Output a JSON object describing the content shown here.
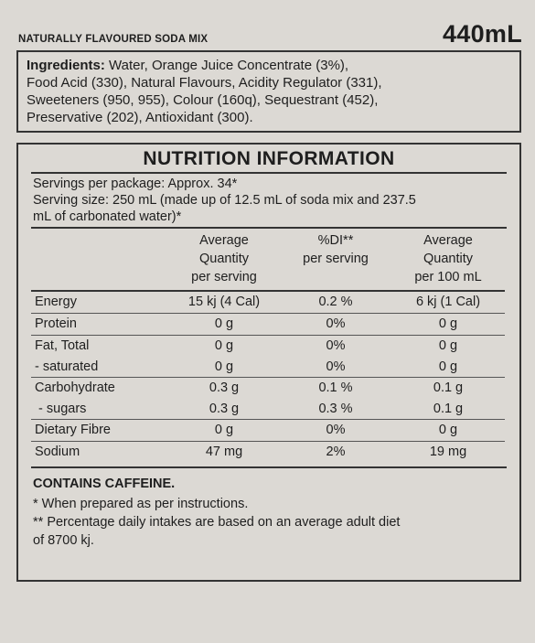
{
  "header": {
    "product": "NATURALLY FLAVOURED SODA MIX",
    "volume": "440mL"
  },
  "ingredients": {
    "label": "Ingredients:",
    "line1": " Water, Orange Juice Concentrate (3%),",
    "line2": "Food Acid (330), Natural Flavours, Acidity Regulator (331),",
    "line3": "Sweeteners (950, 955), Colour (160q), Sequestrant (452),",
    "line4": "Preservative (202), Antioxidant (300)."
  },
  "nutrition": {
    "title": "NUTRITION INFORMATION",
    "servings_per_package": "Servings per package: Approx. 34*",
    "serving_size_line1": "Serving size: 250 mL (made up of 12.5 mL of soda mix and 237.5",
    "serving_size_line2": "mL of carbonated water)*",
    "columns": {
      "avg_per_serving": [
        "Average",
        "Quantity",
        "per serving"
      ],
      "di_per_serving": [
        "%DI**",
        "per serving"
      ],
      "avg_per_100ml": [
        "Average",
        "Quantity",
        "per 100 mL"
      ]
    },
    "rows": [
      {
        "label": "Energy",
        "avg": "15 kj (4 Cal)",
        "di": "0.2 %",
        "per100": "6 kj (1 Cal)",
        "sep": true
      },
      {
        "label": "Protein",
        "avg": "0 g",
        "di": "0%",
        "per100": "0 g",
        "sep": true
      },
      {
        "label": "Fat, Total",
        "avg": "0 g",
        "di": "0%",
        "per100": "0 g",
        "sep": true
      },
      {
        "label": "- saturated",
        "avg": "0 g",
        "di": "0%",
        "per100": "0 g",
        "sep": false
      },
      {
        "label": "Carbohydrate",
        "avg": "0.3 g",
        "di": "0.1 %",
        "per100": "0.1 g",
        "sep": true
      },
      {
        "label": " - sugars",
        "avg": "0.3 g",
        "di": "0.3 %",
        "per100": "0.1 g",
        "sep": false
      },
      {
        "label": "Dietary Fibre",
        "avg": "0 g",
        "di": "0%",
        "per100": "0 g",
        "sep": true
      },
      {
        "label": "Sodium",
        "avg": "47 mg",
        "di": "2%",
        "per100": "19 mg",
        "sep": true
      }
    ]
  },
  "footnotes": {
    "caffeine": "CONTAINS CAFFEINE.",
    "note1": "* When prepared as per instructions.",
    "note2_line1": "** Percentage daily intakes are based on an average adult diet",
    "note2_line2": "of 8700 kj."
  }
}
